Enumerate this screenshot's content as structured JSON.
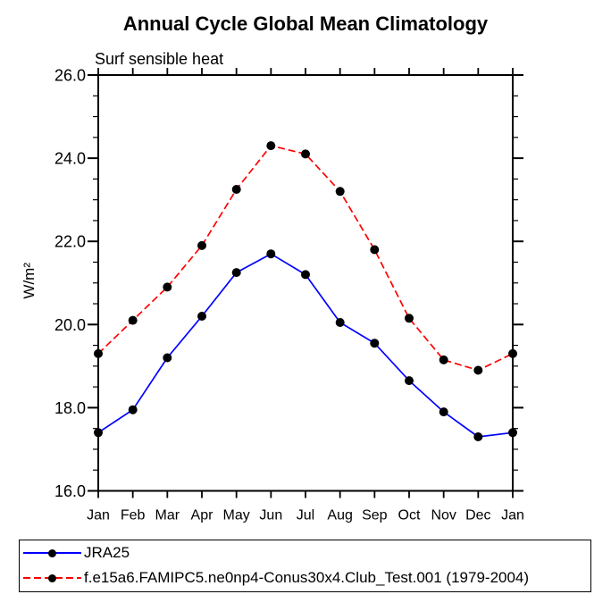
{
  "chart_data": {
    "type": "line",
    "title": "Annual Cycle Global Mean Climatology",
    "subtitle": "Surf sensible heat",
    "ylabel": "W/m²",
    "xlabel": "",
    "x_categories": [
      "Jan",
      "Feb",
      "Mar",
      "Apr",
      "May",
      "Jun",
      "Jul",
      "Aug",
      "Sep",
      "Oct",
      "Nov",
      "Dec",
      "Jan"
    ],
    "ylim": [
      16.0,
      26.0
    ],
    "y_major_ticks": [
      16,
      18,
      20,
      22,
      24,
      26
    ],
    "y_tick_labels": [
      "16.0",
      "18.0",
      "20.0",
      "22.0",
      "24.0",
      "26.0"
    ],
    "y_minor_step": 0.5,
    "grid": false,
    "legend_position": "bottom-left-box",
    "axis_color": "#000000",
    "background_color": "#ffffff",
    "series": [
      {
        "name": "JRA25",
        "color": "#0000ff",
        "line_style": "solid",
        "marker": "filled-circle",
        "marker_color": "#000000",
        "values": [
          17.4,
          17.95,
          19.2,
          20.2,
          21.25,
          21.7,
          21.2,
          20.05,
          19.55,
          18.65,
          17.9,
          17.3,
          17.4
        ]
      },
      {
        "name": "f.e15a6.FAMIPC5.ne0np4-Conus30x4.Club_Test.001 (1979-2004)",
        "color": "#ff0000",
        "line_style": "dashed",
        "marker": "filled-circle",
        "marker_color": "#000000",
        "values": [
          19.3,
          20.1,
          20.9,
          21.9,
          23.25,
          24.3,
          24.1,
          23.2,
          21.8,
          20.15,
          19.15,
          18.9,
          19.3
        ]
      }
    ]
  }
}
